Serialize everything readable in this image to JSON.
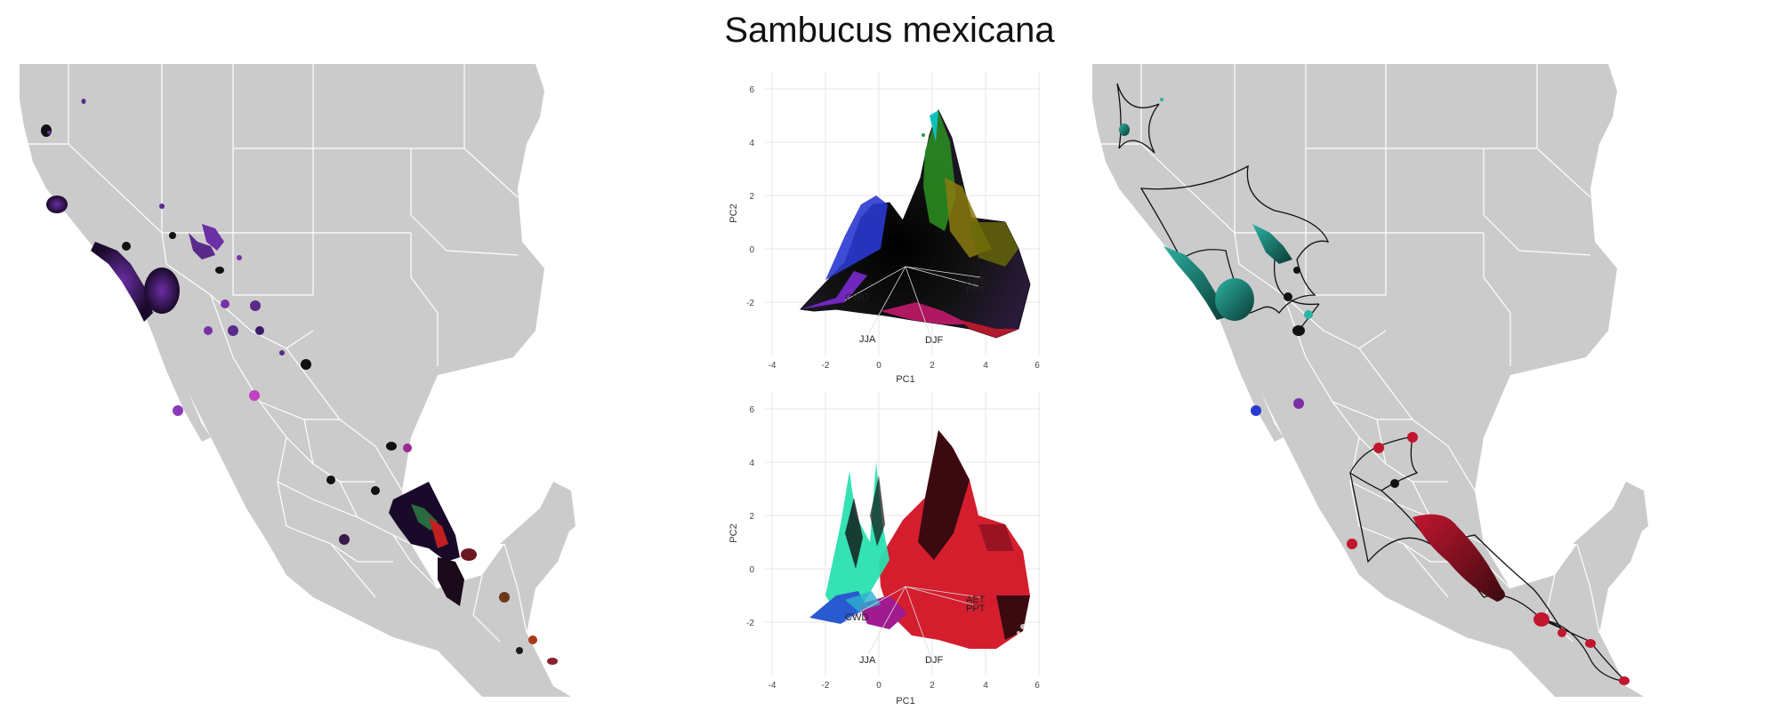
{
  "title": "Sambucus mexicana",
  "colors": {
    "land": "#cbcbcb",
    "border": "#ffffff",
    "purple": "#5a2a8a",
    "teal": "#2bb3a3",
    "red": "#c2162f",
    "dark": "#111111"
  },
  "pca_top": {
    "xlabel": "PC1",
    "ylabel": "PC2",
    "xticks": [
      "-4",
      "-2",
      "0",
      "2",
      "4",
      "6"
    ],
    "yticks": [
      "6",
      "4",
      "2",
      "0",
      "-2"
    ],
    "vectors": [
      "AET",
      "PPT",
      "CWD",
      "JJA",
      "DJF"
    ]
  },
  "pca_bottom": {
    "xlabel": "PC1",
    "ylabel": "PC2",
    "xticks": [
      "-4",
      "-2",
      "0",
      "2",
      "4",
      "6"
    ],
    "yticks": [
      "6",
      "4",
      "2",
      "0",
      "-2"
    ],
    "vectors": [
      "AET",
      "PPT",
      "CWD",
      "JJA",
      "DJF"
    ]
  },
  "chart_data": [
    {
      "type": "scatter",
      "title": "",
      "xlabel": "PC1",
      "ylabel": "PC2",
      "xlim": [
        -4,
        6
      ],
      "ylim": [
        -3.5,
        6.5
      ],
      "grid": true,
      "vector_labels": [
        "AET",
        "PPT",
        "CWD",
        "JJA",
        "DJF"
      ]
    },
    {
      "type": "scatter",
      "title": "",
      "xlabel": "PC1",
      "ylabel": "PC2",
      "xlim": [
        -4,
        6
      ],
      "ylim": [
        -3.5,
        6.5
      ],
      "grid": true,
      "vector_labels": [
        "AET",
        "PPT",
        "CWD",
        "JJA",
        "DJF"
      ]
    }
  ]
}
